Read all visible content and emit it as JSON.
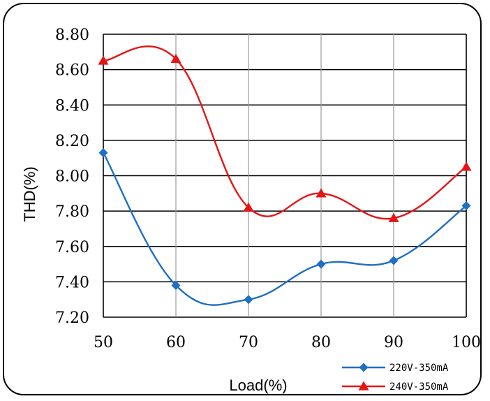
{
  "chart_data": {
    "type": "line",
    "xlabel": "Load(%)",
    "ylabel": "THD(%)",
    "x": [
      50,
      60,
      70,
      80,
      90,
      100
    ],
    "xlim": [
      50,
      100
    ],
    "ylim": [
      7.2,
      8.8
    ],
    "x_ticks": [
      "50",
      "60",
      "70",
      "80",
      "90",
      "100"
    ],
    "y_ticks": [
      "7.20",
      "7.40",
      "7.60",
      "7.80",
      "8.00",
      "8.20",
      "8.40",
      "8.60",
      "8.80"
    ],
    "grid": true,
    "smooth": true,
    "legend_position": "bottom-right",
    "series": [
      {
        "name": "220V-350mA",
        "values": [
          8.13,
          7.38,
          7.3,
          7.5,
          7.52,
          7.83
        ],
        "color": "#1F6FC4",
        "marker": "diamond"
      },
      {
        "name": "240V-350mA",
        "values": [
          8.65,
          8.66,
          7.82,
          7.9,
          7.76,
          8.05
        ],
        "color": "#E81414",
        "marker": "triangle"
      }
    ]
  }
}
